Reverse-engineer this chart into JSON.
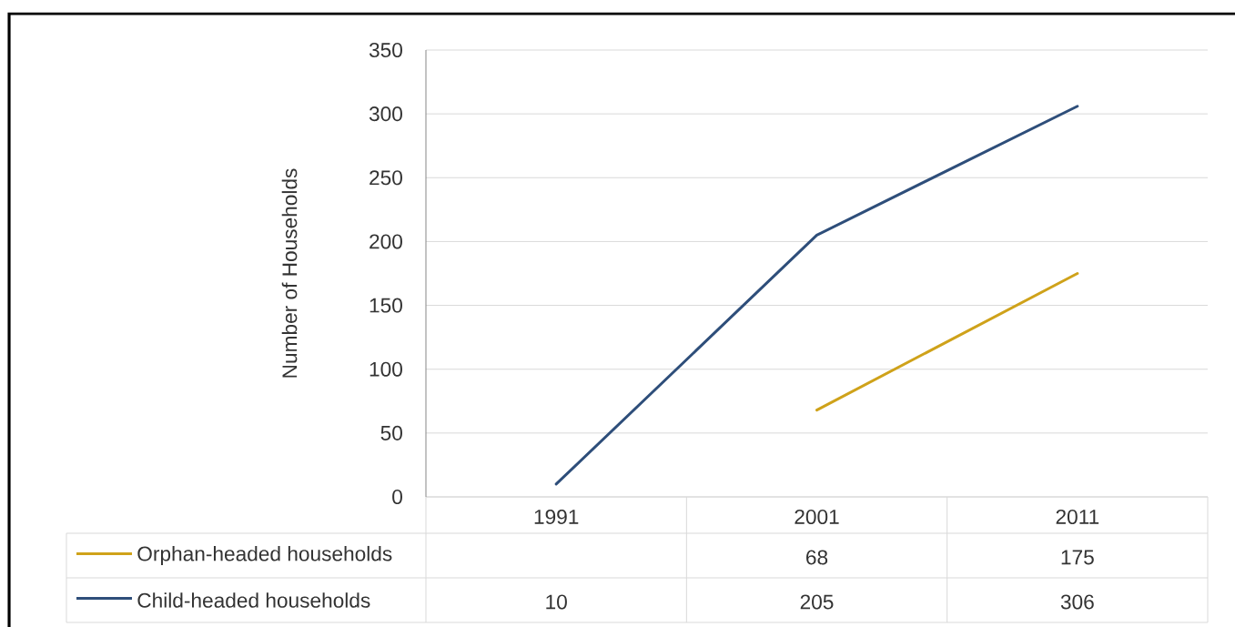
{
  "chart_data": {
    "type": "line",
    "ylabel": "Number of Households",
    "categories": [
      "1991",
      "2001",
      "2011"
    ],
    "series": [
      {
        "name": "Orphan-headed households",
        "color": "#cfa21a",
        "values": [
          null,
          68,
          175
        ]
      },
      {
        "name": "Child-headed households",
        "color": "#2e4e7a",
        "values": [
          10,
          205,
          306
        ]
      }
    ],
    "ylim": [
      0,
      350
    ],
    "yticks": [
      0,
      50,
      100,
      150,
      200,
      250,
      300,
      350
    ],
    "grid": "y",
    "legend": "bottom",
    "data_labels": true
  }
}
